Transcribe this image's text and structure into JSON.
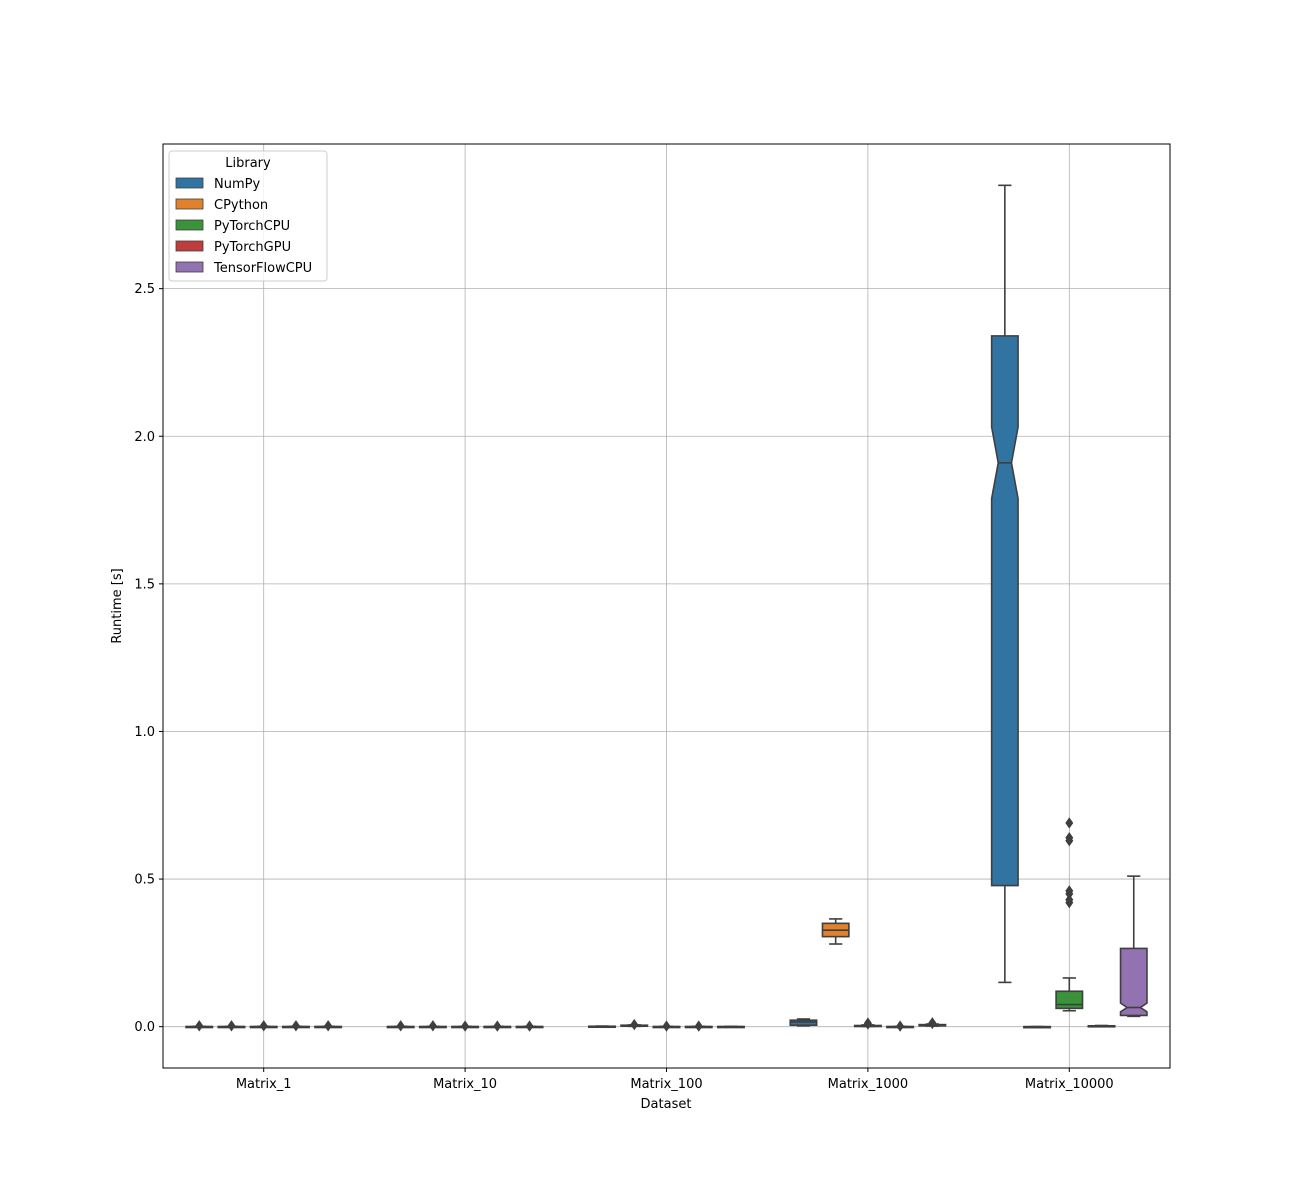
{
  "chart_data": {
    "type": "box",
    "title": "",
    "xlabel": "Dataset",
    "ylabel": "Runtime [s]",
    "ylim": [
      -0.14,
      2.99
    ],
    "yticks": [
      0.0,
      0.5,
      1.0,
      1.5,
      2.0,
      2.5
    ],
    "ytick_labels": [
      "0.0",
      "0.5",
      "1.0",
      "1.5",
      "2.0",
      "2.5"
    ],
    "grid": true,
    "notched": true,
    "legend": {
      "title": "Library",
      "placement": "top-left"
    },
    "categories": [
      "Matrix_1",
      "Matrix_10",
      "Matrix_100",
      "Matrix_1000",
      "Matrix_10000"
    ],
    "series": [
      {
        "name": "NumPy",
        "color": "#3274a1",
        "boxes": [
          {
            "whislo": 0.0,
            "q1": 0.0,
            "med": 0.0,
            "q3": 0.0005,
            "whishi": 0.001,
            "fliers": [
              0.003
            ]
          },
          {
            "whislo": 0.0,
            "q1": 0.0,
            "med": 0.0,
            "q3": 0.0005,
            "whishi": 0.001,
            "fliers": [
              0.003
            ]
          },
          {
            "whislo": 0.0,
            "q1": 0.0005,
            "med": 0.001,
            "q3": 0.0015,
            "whishi": 0.002,
            "fliers": []
          },
          {
            "whislo": 0.003,
            "q1": 0.005,
            "med": 0.016,
            "q3": 0.022,
            "whishi": 0.026,
            "fliers": []
          },
          {
            "whislo": 0.15,
            "q1": 0.478,
            "med": 1.91,
            "q3": 2.34,
            "whishi": 2.85,
            "fliers": []
          }
        ]
      },
      {
        "name": "CPython",
        "color": "#e1812c",
        "boxes": [
          {
            "whislo": 0.0,
            "q1": 0.0,
            "med": 0.0,
            "q3": 0.0005,
            "whishi": 0.001,
            "fliers": [
              0.003
            ]
          },
          {
            "whislo": 0.0,
            "q1": 0.0,
            "med": 0.0,
            "q3": 0.0005,
            "whishi": 0.001,
            "fliers": [
              0.003
            ]
          },
          {
            "whislo": 0.001,
            "q1": 0.003,
            "med": 0.004,
            "q3": 0.005,
            "whishi": 0.006,
            "fliers": [
              0.007
            ]
          },
          {
            "whislo": 0.28,
            "q1": 0.305,
            "med": 0.327,
            "q3": 0.35,
            "whishi": 0.365,
            "fliers": []
          },
          {
            "whislo": 0.0,
            "q1": 0.0,
            "med": 0.0,
            "q3": 0.0,
            "whishi": 0.0,
            "fliers": []
          }
        ]
      },
      {
        "name": "PyTorchCPU",
        "color": "#3a923a",
        "boxes": [
          {
            "whislo": 0.0,
            "q1": 0.0,
            "med": 0.0,
            "q3": 0.0005,
            "whishi": 0.001,
            "fliers": [
              0.003
            ]
          },
          {
            "whislo": 0.0,
            "q1": 0.0,
            "med": 0.0,
            "q3": 0.0005,
            "whishi": 0.001,
            "fliers": [
              0.002
            ]
          },
          {
            "whislo": 0.0,
            "q1": 0.0,
            "med": 0.0,
            "q3": 0.0005,
            "whishi": 0.001,
            "fliers": [
              0.002
            ]
          },
          {
            "whislo": 0.001,
            "q1": 0.002,
            "med": 0.003,
            "q3": 0.004,
            "whishi": 0.006,
            "fliers": [
              0.009,
              0.012
            ]
          },
          {
            "whislo": 0.054,
            "q1": 0.062,
            "med": 0.075,
            "q3": 0.12,
            "whishi": 0.165,
            "fliers": [
              0.42,
              0.43,
              0.45,
              0.46,
              0.63,
              0.64,
              0.69
            ]
          }
        ]
      },
      {
        "name": "PyTorchGPU",
        "color": "#c03d3e",
        "boxes": [
          {
            "whislo": 0.0,
            "q1": 0.0,
            "med": 0.0,
            "q3": 0.0005,
            "whishi": 0.001,
            "fliers": [
              0.003
            ]
          },
          {
            "whislo": 0.0,
            "q1": 0.0,
            "med": 0.0,
            "q3": 0.0005,
            "whishi": 0.001,
            "fliers": [
              0.002
            ]
          },
          {
            "whislo": 0.0,
            "q1": 0.0,
            "med": 0.0,
            "q3": 0.0005,
            "whishi": 0.001,
            "fliers": [
              0.002
            ]
          },
          {
            "whislo": 0.0,
            "q1": 0.0,
            "med": 0.0,
            "q3": 0.0005,
            "whishi": 0.001,
            "fliers": [
              0.002
            ]
          },
          {
            "whislo": 0.0,
            "q1": 0.001,
            "med": 0.002,
            "q3": 0.003,
            "whishi": 0.004,
            "fliers": []
          }
        ]
      },
      {
        "name": "TensorFlowCPU",
        "color": "#9372b2",
        "boxes": [
          {
            "whislo": 0.0,
            "q1": 0.0,
            "med": 0.0,
            "q3": 0.0005,
            "whishi": 0.001,
            "fliers": [
              0.003
            ]
          },
          {
            "whislo": 0.0,
            "q1": 0.0,
            "med": 0.0,
            "q3": 0.0005,
            "whishi": 0.001,
            "fliers": [
              0.002
            ]
          },
          {
            "whislo": 0.0,
            "q1": 0.0,
            "med": 0.0,
            "q3": 0.0005,
            "whishi": 0.001,
            "fliers": []
          },
          {
            "whislo": 0.002,
            "q1": 0.003,
            "med": 0.005,
            "q3": 0.007,
            "whishi": 0.009,
            "fliers": [
              0.011,
              0.013
            ]
          },
          {
            "whislo": 0.035,
            "q1": 0.038,
            "med": 0.065,
            "q3": 0.265,
            "whishi": 0.51,
            "fliers": []
          }
        ]
      }
    ]
  }
}
